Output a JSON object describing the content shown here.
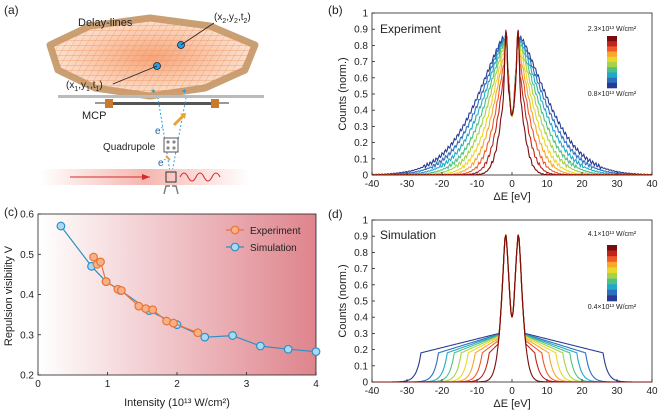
{
  "panel_labels": {
    "a": "(a)",
    "b": "(b)",
    "c": "(c)",
    "d": "(d)"
  },
  "apparatus": {
    "delay_lines_label": "Delay-lines",
    "hit1_label": "(x",
    "hit1_sub": "1",
    "hit1_mid": ",y",
    "hit1_end": ",t",
    "hit2_label": "(x",
    "hit2_sub": "2",
    "hit2_mid": ",y",
    "hit2_end": ",t",
    "close_paren": ")",
    "mcp_label": "MCP",
    "quadrupole_label": "Quadrupole",
    "electron_label": "e",
    "electron_sup": "-"
  },
  "colors": {
    "experiment": "#e8743a",
    "simulation": "#2f8fc4",
    "delay_line": "#c9a074",
    "grid_fill": "#f6b48a",
    "shading_end": "#d96e78",
    "colormap": [
      "#7a0c0c",
      "#c0251c",
      "#f1592a",
      "#f8a72c",
      "#e9d82c",
      "#a4d24a",
      "#4fc083",
      "#22a9c9",
      "#2d6fbd",
      "#283a93"
    ]
  },
  "chart_data": [
    {
      "id": "b",
      "type": "line",
      "title": "Experiment",
      "xlabel": "ΔE [eV]",
      "ylabel": "Counts  (norm.)",
      "xlim": [
        -40,
        40
      ],
      "ylim": [
        0,
        1
      ],
      "xticks": [
        "-40",
        "-30",
        "-20",
        "-10",
        "0",
        "10",
        "20",
        "30",
        "40"
      ],
      "yticks": [
        "0",
        "0.1",
        "0.2",
        "0.3",
        "0.4",
        "0.5",
        "0.6",
        "0.7",
        "0.8",
        "0.9",
        "1"
      ],
      "colorbar_top": "2.3×10¹³ W/cm²",
      "colorbar_bottom": "0.8×10¹³ W/cm²",
      "series_widths": [
        3.2,
        4.2,
        5.2,
        6.2,
        7.2,
        8.3,
        9.4,
        10.6,
        11.8,
        13.0
      ],
      "series_shape": "gaussian-dip",
      "edge_cutoff": null
    },
    {
      "id": "c",
      "type": "line",
      "xlabel": "Intensity (10¹³ W/cm²)",
      "ylabel": "Repulsion visibility V",
      "xlim": [
        0,
        4
      ],
      "ylim": [
        0.2,
        0.6
      ],
      "xticks": [
        "0",
        "1",
        "2",
        "3",
        "4"
      ],
      "yticks": [
        "0.2",
        "0.3",
        "0.4",
        "0.5",
        "0.6"
      ],
      "legend_position": "top-right",
      "series": [
        {
          "name": "Experiment",
          "x": [
            0.8,
            0.85,
            0.9,
            0.98,
            1.15,
            1.2,
            1.45,
            1.55,
            1.65,
            1.85,
            1.95,
            2.3
          ],
          "y": [
            0.493,
            0.475,
            0.481,
            0.432,
            0.413,
            0.41,
            0.371,
            0.365,
            0.362,
            0.334,
            0.329,
            0.305
          ]
        },
        {
          "name": "Simulation",
          "x": [
            0.33,
            0.77,
            0.98,
            1.19,
            1.6,
            2.0,
            2.4,
            2.8,
            3.2,
            3.6,
            4.0
          ],
          "y": [
            0.57,
            0.47,
            0.432,
            0.41,
            0.36,
            0.325,
            0.294,
            0.298,
            0.272,
            0.264,
            0.258
          ]
        }
      ]
    },
    {
      "id": "d",
      "type": "line",
      "title": "Simulation",
      "xlabel": "ΔE [eV]",
      "ylabel": "Counts  (norm.)",
      "xlim": [
        -40,
        40
      ],
      "ylim": [
        0,
        1
      ],
      "xticks": [
        "-40",
        "-30",
        "-20",
        "-10",
        "0",
        "10",
        "20",
        "30",
        "40"
      ],
      "yticks": [
        "0",
        "0.1",
        "0.2",
        "0.3",
        "0.4",
        "0.5",
        "0.6",
        "0.7",
        "0.8",
        "0.9",
        "1"
      ],
      "colorbar_top": "4.1×10¹³ W/cm²",
      "colorbar_bottom": "0.4×10¹³ W/cm²",
      "series_widths": [
        2.6,
        3.4,
        4.6,
        6.0,
        7.4,
        9.0,
        10.6,
        12.4,
        14.2,
        17.0
      ],
      "series_shape": "flat-shoulder",
      "edge_cutoff": [
        4.5,
        6.5,
        8.5,
        10.5,
        12.5,
        14.5,
        16.5,
        18.5,
        21.0,
        26.0
      ]
    }
  ]
}
